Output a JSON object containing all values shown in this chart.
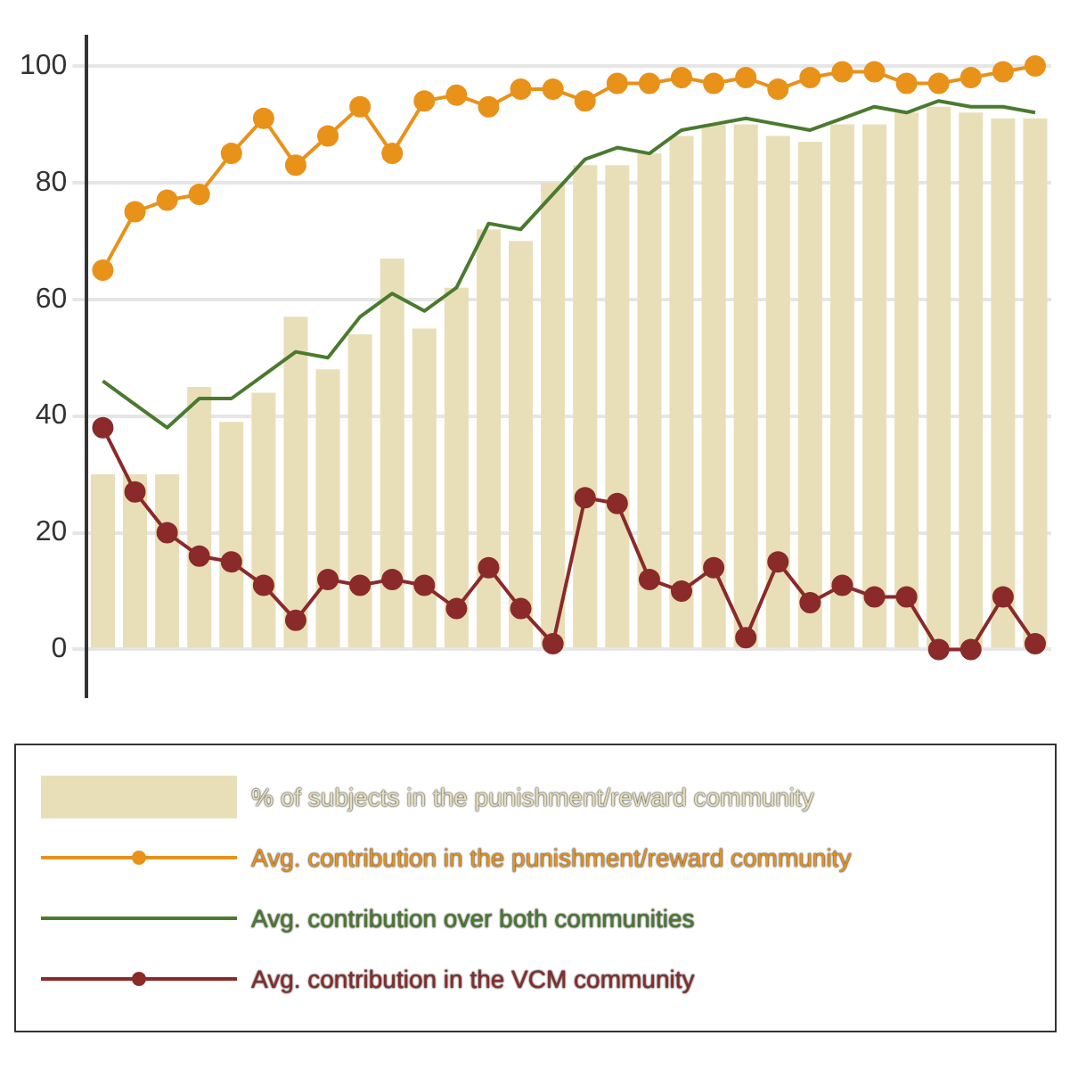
{
  "chart_data": {
    "type": "bar",
    "categories": [
      null,
      null,
      null,
      null,
      null,
      null,
      null,
      null,
      null,
      null,
      null,
      null,
      null,
      null,
      null,
      null,
      null,
      null,
      null,
      null,
      null,
      null,
      null,
      null,
      null,
      null,
      null,
      null,
      null,
      null
    ],
    "series": [
      {
        "name": "% of subjects in the punishment/reward community",
        "color": "#e8dfb8",
        "values": [
          30,
          30,
          30,
          45,
          39,
          44,
          57,
          48,
          54,
          67,
          55,
          62,
          72,
          70,
          80,
          83,
          83,
          85,
          88,
          90,
          90,
          88,
          87,
          90,
          90,
          92,
          93,
          92,
          91,
          91
        ]
      },
      {
        "name": "Avg. contribution in the punishment/reward community",
        "type": "line",
        "marker": "circle",
        "color": "#e8921a",
        "values": [
          65,
          75,
          77,
          78,
          85,
          91,
          83,
          88,
          93,
          85,
          94,
          95,
          93,
          96,
          96,
          94,
          97,
          97,
          98,
          97,
          98,
          96,
          98,
          99,
          99,
          97,
          97,
          98,
          99,
          100
        ]
      },
      {
        "name": "Avg. contribution over both communities",
        "type": "line",
        "marker": "none",
        "color": "#4a7a2e",
        "values": [
          46,
          42,
          38,
          43,
          43,
          47,
          51,
          50,
          57,
          61,
          58,
          62,
          73,
          72,
          78,
          84,
          86,
          85,
          89,
          90,
          91,
          90,
          89,
          91,
          93,
          92,
          94,
          93,
          93,
          92
        ]
      },
      {
        "name": "Avg. contribution in the VCM community",
        "type": "line",
        "marker": "circle",
        "color": "#8b2a2a",
        "values": [
          38,
          27,
          20,
          16,
          15,
          11,
          5,
          12,
          11,
          12,
          11,
          7,
          14,
          7,
          1,
          26,
          25,
          12,
          10,
          14,
          2,
          15,
          8,
          11,
          9,
          9,
          0,
          0,
          9,
          1
        ]
      }
    ],
    "ylim": [
      -8,
      105
    ],
    "yticks": [
      0,
      20,
      40,
      60,
      80,
      100
    ],
    "grid": "y",
    "legend": "bottom"
  }
}
